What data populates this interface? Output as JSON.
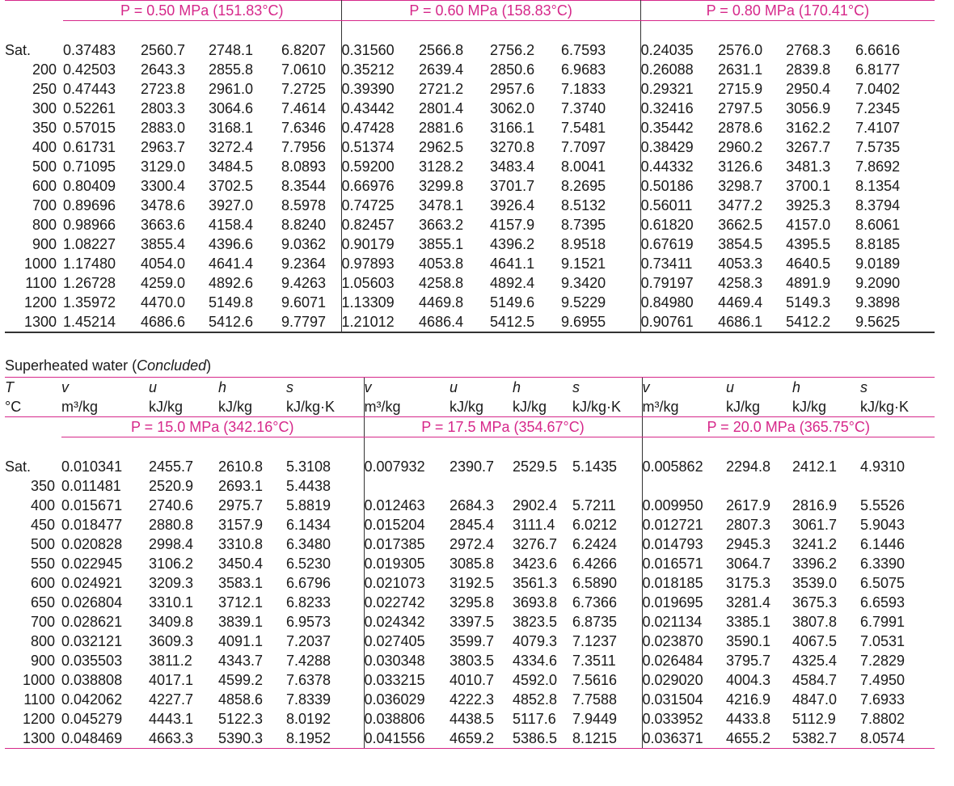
{
  "top_table": {
    "temperatures": [
      "Sat.",
      "200",
      "250",
      "300",
      "350",
      "400",
      "500",
      "600",
      "700",
      "800",
      "900",
      "1000",
      "1100",
      "1200",
      "1300"
    ],
    "groups": [
      {
        "pressure_label": "P = 0.50 MPa (151.83°C)",
        "rows": [
          [
            "0.37483",
            "2560.7",
            "2748.1",
            "6.8207"
          ],
          [
            "0.42503",
            "2643.3",
            "2855.8",
            "7.0610"
          ],
          [
            "0.47443",
            "2723.8",
            "2961.0",
            "7.2725"
          ],
          [
            "0.52261",
            "2803.3",
            "3064.6",
            "7.4614"
          ],
          [
            "0.57015",
            "2883.0",
            "3168.1",
            "7.6346"
          ],
          [
            "0.61731",
            "2963.7",
            "3272.4",
            "7.7956"
          ],
          [
            "0.71095",
            "3129.0",
            "3484.5",
            "8.0893"
          ],
          [
            "0.80409",
            "3300.4",
            "3702.5",
            "8.3544"
          ],
          [
            "0.89696",
            "3478.6",
            "3927.0",
            "8.5978"
          ],
          [
            "0.98966",
            "3663.6",
            "4158.4",
            "8.8240"
          ],
          [
            "1.08227",
            "3855.4",
            "4396.6",
            "9.0362"
          ],
          [
            "1.17480",
            "4054.0",
            "4641.4",
            "9.2364"
          ],
          [
            "1.26728",
            "4259.0",
            "4892.6",
            "9.4263"
          ],
          [
            "1.35972",
            "4470.0",
            "5149.8",
            "9.6071"
          ],
          [
            "1.45214",
            "4686.6",
            "5412.6",
            "9.7797"
          ]
        ]
      },
      {
        "pressure_label": "P = 0.60 MPa (158.83°C)",
        "rows": [
          [
            "0.31560",
            "2566.8",
            "2756.2",
            "6.7593"
          ],
          [
            "0.35212",
            "2639.4",
            "2850.6",
            "6.9683"
          ],
          [
            "0.39390",
            "2721.2",
            "2957.6",
            "7.1833"
          ],
          [
            "0.43442",
            "2801.4",
            "3062.0",
            "7.3740"
          ],
          [
            "0.47428",
            "2881.6",
            "3166.1",
            "7.5481"
          ],
          [
            "0.51374",
            "2962.5",
            "3270.8",
            "7.7097"
          ],
          [
            "0.59200",
            "3128.2",
            "3483.4",
            "8.0041"
          ],
          [
            "0.66976",
            "3299.8",
            "3701.7",
            "8.2695"
          ],
          [
            "0.74725",
            "3478.1",
            "3926.4",
            "8.5132"
          ],
          [
            "0.82457",
            "3663.2",
            "4157.9",
            "8.7395"
          ],
          [
            "0.90179",
            "3855.1",
            "4396.2",
            "8.9518"
          ],
          [
            "0.97893",
            "4053.8",
            "4641.1",
            "9.1521"
          ],
          [
            "1.05603",
            "4258.8",
            "4892.4",
            "9.3420"
          ],
          [
            "1.13309",
            "4469.8",
            "5149.6",
            "9.5229"
          ],
          [
            "1.21012",
            "4686.4",
            "5412.5",
            "9.6955"
          ]
        ]
      },
      {
        "pressure_label": "P = 0.80 MPa (170.41°C)",
        "rows": [
          [
            "0.24035",
            "2576.0",
            "2768.3",
            "6.6616"
          ],
          [
            "0.26088",
            "2631.1",
            "2839.8",
            "6.8177"
          ],
          [
            "0.29321",
            "2715.9",
            "2950.4",
            "7.0402"
          ],
          [
            "0.32416",
            "2797.5",
            "3056.9",
            "7.2345"
          ],
          [
            "0.35442",
            "2878.6",
            "3162.2",
            "7.4107"
          ],
          [
            "0.38429",
            "2960.2",
            "3267.7",
            "7.5735"
          ],
          [
            "0.44332",
            "3126.6",
            "3481.3",
            "7.8692"
          ],
          [
            "0.50186",
            "3298.7",
            "3700.1",
            "8.1354"
          ],
          [
            "0.56011",
            "3477.2",
            "3925.3",
            "8.3794"
          ],
          [
            "0.61820",
            "3662.5",
            "4157.0",
            "8.6061"
          ],
          [
            "0.67619",
            "3854.5",
            "4395.5",
            "8.8185"
          ],
          [
            "0.73411",
            "4053.3",
            "4640.5",
            "9.0189"
          ],
          [
            "0.79197",
            "4258.3",
            "4891.9",
            "9.2090"
          ],
          [
            "0.84980",
            "4469.4",
            "5149.3",
            "9.3898"
          ],
          [
            "0.90761",
            "4686.1",
            "5412.2",
            "9.5625"
          ]
        ]
      }
    ]
  },
  "bottom_table": {
    "title_prefix": "Superheated water (",
    "title_italic": "Concluded",
    "title_suffix": ")",
    "header_symbols": [
      "T",
      "v",
      "u",
      "h",
      "s",
      "v",
      "u",
      "h",
      "s",
      "v",
      "u",
      "h",
      "s"
    ],
    "header_units": [
      "°C",
      "m³/kg",
      "kJ/kg",
      "kJ/kg",
      "kJ/kg·K",
      "m³/kg",
      "kJ/kg",
      "kJ/kg",
      "kJ/kg·K",
      "m³/kg",
      "kJ/kg",
      "kJ/kg",
      "kJ/kg·K"
    ],
    "temperatures": [
      "Sat.",
      "350",
      "400",
      "450",
      "500",
      "550",
      "600",
      "650",
      "700",
      "800",
      "900",
      "1000",
      "1100",
      "1200",
      "1300"
    ],
    "groups": [
      {
        "pressure_label": "P = 15.0 MPa (342.16°C)",
        "rows": [
          [
            "0.010341",
            "2455.7",
            "2610.8",
            "5.3108"
          ],
          [
            "0.011481",
            "2520.9",
            "2693.1",
            "5.4438"
          ],
          [
            "0.015671",
            "2740.6",
            "2975.7",
            "5.8819"
          ],
          [
            "0.018477",
            "2880.8",
            "3157.9",
            "6.1434"
          ],
          [
            "0.020828",
            "2998.4",
            "3310.8",
            "6.3480"
          ],
          [
            "0.022945",
            "3106.2",
            "3450.4",
            "6.5230"
          ],
          [
            "0.024921",
            "3209.3",
            "3583.1",
            "6.6796"
          ],
          [
            "0.026804",
            "3310.1",
            "3712.1",
            "6.8233"
          ],
          [
            "0.028621",
            "3409.8",
            "3839.1",
            "6.9573"
          ],
          [
            "0.032121",
            "3609.3",
            "4091.1",
            "7.2037"
          ],
          [
            "0.035503",
            "3811.2",
            "4343.7",
            "7.4288"
          ],
          [
            "0.038808",
            "4017.1",
            "4599.2",
            "7.6378"
          ],
          [
            "0.042062",
            "4227.7",
            "4858.6",
            "7.8339"
          ],
          [
            "0.045279",
            "4443.1",
            "5122.3",
            "8.0192"
          ],
          [
            "0.048469",
            "4663.3",
            "5390.3",
            "8.1952"
          ]
        ]
      },
      {
        "pressure_label": "P = 17.5 MPa (354.67°C)",
        "rows": [
          [
            "0.007932",
            "2390.7",
            "2529.5",
            "5.1435"
          ],
          [
            "",
            "",
            "",
            ""
          ],
          [
            "0.012463",
            "2684.3",
            "2902.4",
            "5.7211"
          ],
          [
            "0.015204",
            "2845.4",
            "3111.4",
            "6.0212"
          ],
          [
            "0.017385",
            "2972.4",
            "3276.7",
            "6.2424"
          ],
          [
            "0.019305",
            "3085.8",
            "3423.6",
            "6.4266"
          ],
          [
            "0.021073",
            "3192.5",
            "3561.3",
            "6.5890"
          ],
          [
            "0.022742",
            "3295.8",
            "3693.8",
            "6.7366"
          ],
          [
            "0.024342",
            "3397.5",
            "3823.5",
            "6.8735"
          ],
          [
            "0.027405",
            "3599.7",
            "4079.3",
            "7.1237"
          ],
          [
            "0.030348",
            "3803.5",
            "4334.6",
            "7.3511"
          ],
          [
            "0.033215",
            "4010.7",
            "4592.0",
            "7.5616"
          ],
          [
            "0.036029",
            "4222.3",
            "4852.8",
            "7.7588"
          ],
          [
            "0.038806",
            "4438.5",
            "5117.6",
            "7.9449"
          ],
          [
            "0.041556",
            "4659.2",
            "5386.5",
            "8.1215"
          ]
        ]
      },
      {
        "pressure_label": "P = 20.0 MPa (365.75°C)",
        "rows": [
          [
            "0.005862",
            "2294.8",
            "2412.1",
            "4.9310"
          ],
          [
            "",
            "",
            "",
            ""
          ],
          [
            "0.009950",
            "2617.9",
            "2816.9",
            "5.5526"
          ],
          [
            "0.012721",
            "2807.3",
            "3061.7",
            "5.9043"
          ],
          [
            "0.014793",
            "2945.3",
            "3241.2",
            "6.1446"
          ],
          [
            "0.016571",
            "3064.7",
            "3396.2",
            "6.3390"
          ],
          [
            "0.018185",
            "3175.3",
            "3539.0",
            "6.5075"
          ],
          [
            "0.019695",
            "3281.4",
            "3675.3",
            "6.6593"
          ],
          [
            "0.021134",
            "3385.1",
            "3807.8",
            "6.7991"
          ],
          [
            "0.023870",
            "3590.1",
            "4067.5",
            "7.0531"
          ],
          [
            "0.026484",
            "3795.7",
            "4325.4",
            "7.2829"
          ],
          [
            "0.029020",
            "4004.3",
            "4584.7",
            "7.4950"
          ],
          [
            "0.031504",
            "4216.9",
            "4847.0",
            "7.6933"
          ],
          [
            "0.033952",
            "4433.8",
            "5112.9",
            "7.8802"
          ],
          [
            "0.036371",
            "4655.2",
            "5382.7",
            "8.0574"
          ]
        ]
      }
    ]
  }
}
